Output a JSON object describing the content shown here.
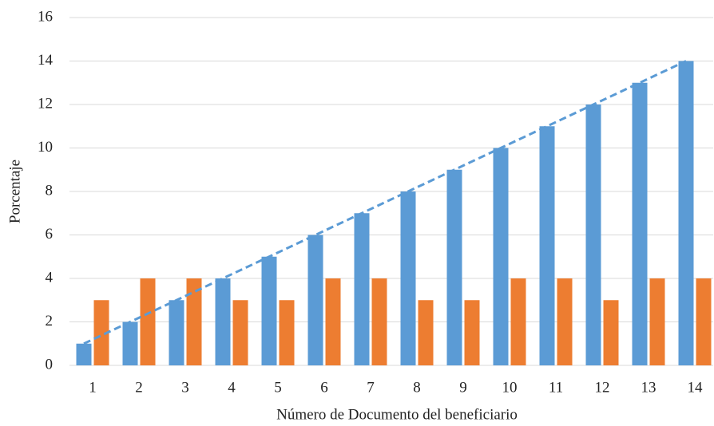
{
  "chart_data": {
    "type": "bar",
    "x_label": "Número de Documento del beneficiario",
    "y_label": "Porcentaje",
    "categories": [
      "1",
      "2",
      "3",
      "4",
      "5",
      "6",
      "7",
      "8",
      "9",
      "10",
      "11",
      "12",
      "13",
      "14"
    ],
    "series": [
      {
        "color": "#5b9bd5",
        "values": [
          1,
          2,
          3,
          4,
          5,
          6,
          7,
          8,
          9,
          10,
          11,
          12,
          13,
          14
        ]
      },
      {
        "color": "#ed7d31",
        "values": [
          3,
          4,
          4,
          3,
          3,
          4,
          4,
          3,
          3,
          4,
          4,
          3,
          4,
          4
        ]
      }
    ],
    "trend_color": "#5b9bd5",
    "ylim": [
      0,
      16
    ],
    "yticks": [
      0,
      2,
      4,
      6,
      8,
      10,
      12,
      14,
      16
    ],
    "grid": true
  }
}
